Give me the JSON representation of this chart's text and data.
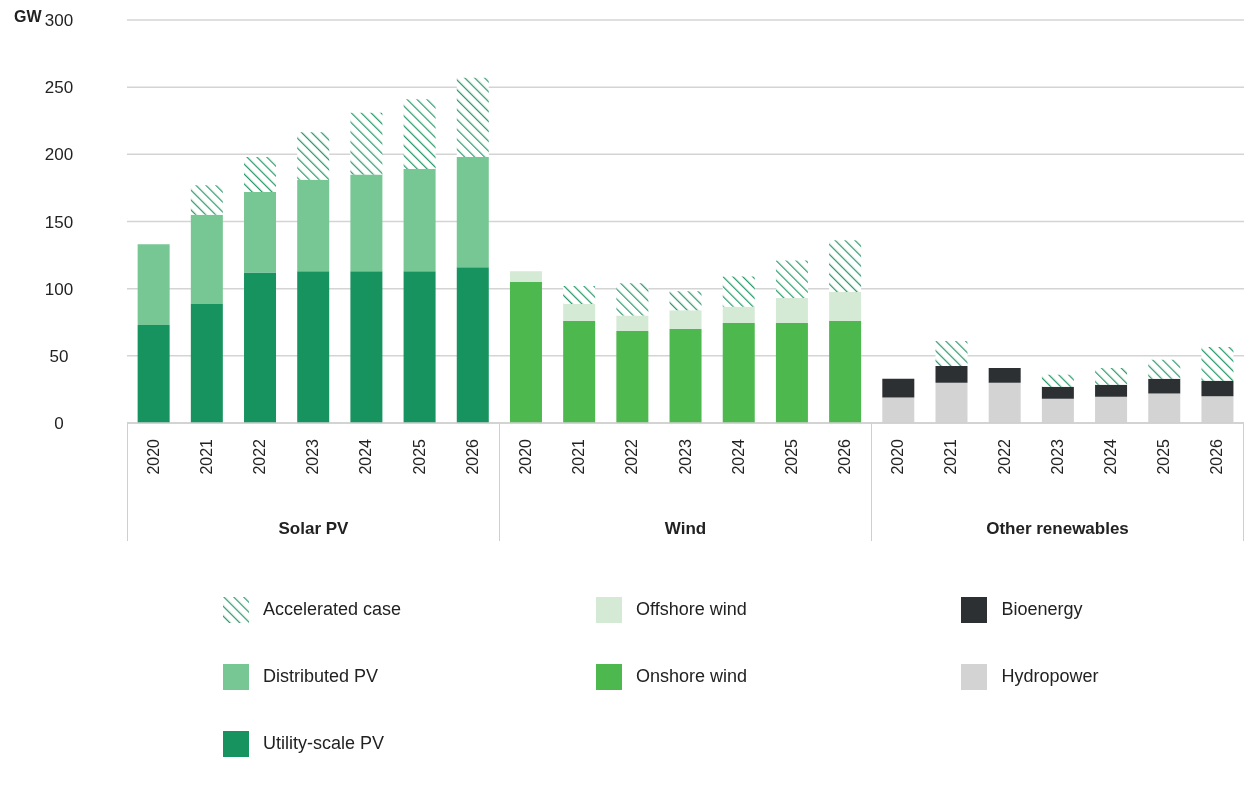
{
  "chart_data": {
    "type": "bar",
    "stacked": true,
    "ylabel": "GW",
    "categories": [
      "2020",
      "2021",
      "2022",
      "2023",
      "2024",
      "2025",
      "2026",
      "2020",
      "2021",
      "2022",
      "2023",
      "2024",
      "2025",
      "2026",
      "2020",
      "2021",
      "2022",
      "2023",
      "2024",
      "2025",
      "2026"
    ],
    "annotations": [
      "Solar PV",
      "Wind",
      "Other renewables"
    ],
    "series": [
      {
        "name": "Utility-scale PV",
        "color": "#179360",
        "values": [
          73,
          88.5,
          112,
          113,
          113,
          113,
          116,
          null,
          null,
          null,
          null,
          null,
          null,
          null,
          null,
          null,
          null,
          null,
          null,
          null,
          null
        ]
      },
      {
        "name": "Distributed PV",
        "color": "#76c794",
        "values": [
          60,
          66.5,
          60,
          68,
          72,
          76,
          82,
          null,
          null,
          null,
          null,
          null,
          null,
          null,
          null,
          null,
          null,
          null,
          null,
          null,
          null
        ]
      },
      {
        "name": "Onshore wind",
        "color": "#4cb84e",
        "values": [
          null,
          null,
          null,
          null,
          null,
          null,
          null,
          105,
          76,
          68.5,
          70,
          74.5,
          74.5,
          76,
          null,
          null,
          null,
          null,
          null,
          null,
          null
        ]
      },
      {
        "name": "Offshore wind",
        "color": "#d5ead5",
        "values": [
          null,
          null,
          null,
          null,
          null,
          null,
          null,
          8,
          12.5,
          11.5,
          14,
          12,
          18.5,
          21.5,
          null,
          null,
          null,
          null,
          null,
          null,
          null
        ]
      },
      {
        "name": "Hydropower",
        "color": "#d3d3d3",
        "values": [
          null,
          null,
          null,
          null,
          null,
          null,
          null,
          null,
          null,
          null,
          null,
          null,
          null,
          null,
          19,
          30,
          30,
          18,
          19.5,
          22,
          20
        ]
      },
      {
        "name": "Bioenergy",
        "color": "#2d3033",
        "values": [
          null,
          null,
          null,
          null,
          null,
          null,
          null,
          null,
          null,
          null,
          null,
          null,
          null,
          null,
          14,
          12.5,
          11,
          9,
          9,
          11,
          11.5
        ]
      },
      {
        "name": "Accelerated case",
        "color": "#2a9a6a",
        "values": [
          null,
          22,
          26,
          35.5,
          46,
          52,
          59,
          null,
          13.5,
          24,
          14,
          22.5,
          28,
          38.5,
          null,
          18.5,
          null,
          9,
          12.5,
          14,
          25
        ]
      }
    ],
    "ylim": [
      0,
      300
    ],
    "yticks": [
      0,
      50,
      100,
      150,
      200,
      250,
      300
    ],
    "grid": "y",
    "legend": "bottom"
  }
}
